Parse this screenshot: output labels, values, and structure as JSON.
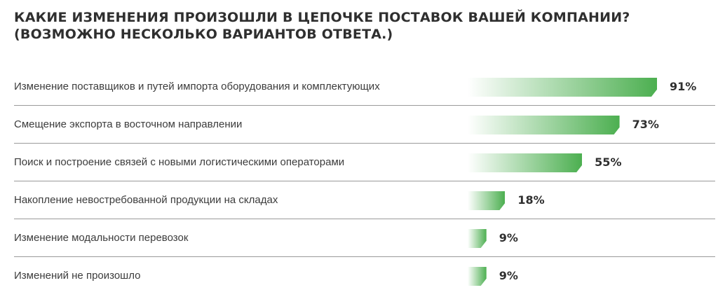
{
  "title_lines": [
    "КАКИЕ ИЗМЕНЕНИЯ ПРОИЗОШЛИ В ЦЕПОЧКЕ ПОСТАВОК ВАШЕЙ КОМПАНИИ?",
    "(ВОЗМОЖНО НЕСКОЛЬКО ВАРИАНТОВ ОТВЕТА.)"
  ],
  "colors": {
    "bar": "#4caf50",
    "text": "#3c3c3c",
    "divider": "#9a9a9a"
  },
  "chart_data": {
    "type": "bar",
    "orientation": "horizontal",
    "title": "КАКИЕ ИЗМЕНЕНИЯ ПРОИЗОШЛИ В ЦЕПОЧКЕ ПОСТАВОК ВАШЕЙ КОМПАНИИ? (ВОЗМОЖНО НЕСКОЛЬКО ВАРИАНТОВ ОТВЕТА.)",
    "categories": [
      "Изменение поставщиков и путей импорта оборудования и комплектующих",
      "Смещение экспорта в восточном направлении",
      "Поиск и построение связей с новыми логистическими операторами",
      "Накопление невостребованной продукции на складах",
      "Изменение модальности перевозок",
      "Изменений не произошло"
    ],
    "values": [
      91,
      73,
      55,
      18,
      9,
      9
    ],
    "value_labels": [
      "91%",
      "73%",
      "55%",
      "18%",
      "9%",
      "9%"
    ],
    "unit": "%",
    "xlim": [
      0,
      100
    ],
    "grid": false,
    "legend": "none"
  }
}
